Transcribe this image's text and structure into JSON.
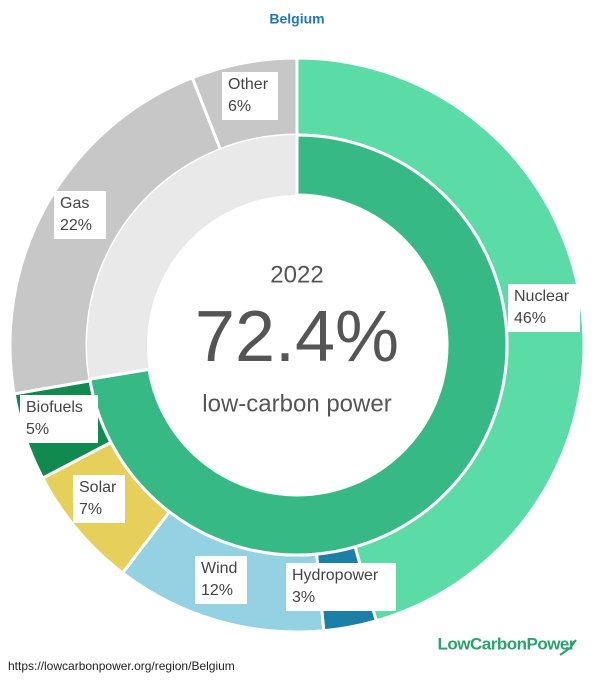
{
  "chart_data": {
    "type": "nested-donut",
    "title": "Belgium",
    "center": {
      "year": "2022",
      "value": 72.4,
      "value_label": "72.4%",
      "caption": "low-carbon power",
      "color": "#37b985",
      "rest_color": "#e9e9e9"
    },
    "categories": [
      "Nuclear",
      "Hydropower",
      "Wind",
      "Solar",
      "Biofuels",
      "Gas",
      "Other"
    ],
    "values": [
      46,
      3,
      12,
      7,
      5,
      22,
      6
    ],
    "value_labels": [
      "46%",
      "3%",
      "12%",
      "7%",
      "5%",
      "22%",
      "6%"
    ],
    "colors": [
      "#5bdba6",
      "#1b7fa8",
      "#93d1e3",
      "#e6cf5a",
      "#108a4f",
      "#c7c7c7",
      "#c7c7c7"
    ],
    "source": "https://lowcarbonpower.org/region/Belgium",
    "logo": "LowCarbonPower"
  }
}
